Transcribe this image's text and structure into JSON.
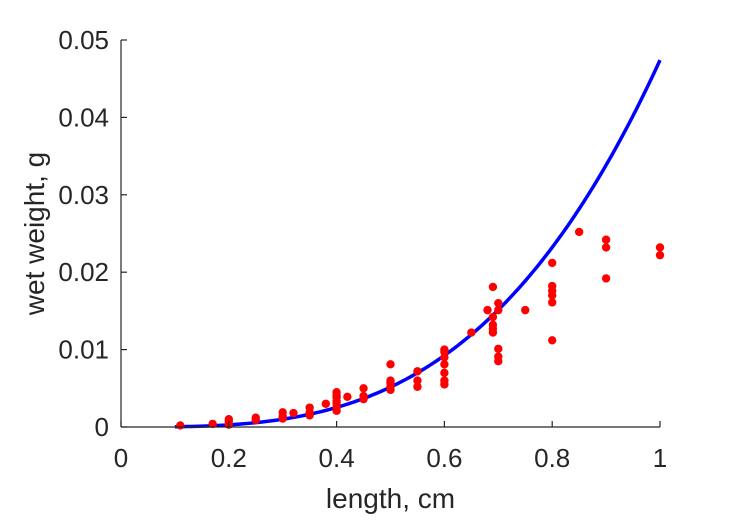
{
  "chart_data": {
    "type": "scatter",
    "title": "",
    "xlabel": "length, cm",
    "ylabel": "wet weight, g",
    "xlim": [
      0,
      1
    ],
    "ylim": [
      0,
      0.05
    ],
    "xticks": [
      0,
      0.2,
      0.4,
      0.6,
      0.8,
      1
    ],
    "xtick_labels": [
      "0",
      "0.2",
      "0.4",
      "0.6",
      "0.8",
      "1"
    ],
    "yticks": [
      0,
      0.01,
      0.02,
      0.03,
      0.04,
      0.05
    ],
    "ytick_labels": [
      "0",
      "0.01",
      "0.02",
      "0.03",
      "0.04",
      "0.05"
    ],
    "grid": false,
    "box": "left-bottom",
    "series": [
      {
        "kind": "scatter",
        "color": "#ff0000",
        "points": [
          [
            0.11,
            0.0002
          ],
          [
            0.17,
            0.0004
          ],
          [
            0.2,
            0.0003
          ],
          [
            0.2,
            0.0007
          ],
          [
            0.2,
            0.001
          ],
          [
            0.25,
            0.0009
          ],
          [
            0.25,
            0.0012
          ],
          [
            0.3,
            0.0011
          ],
          [
            0.3,
            0.0014
          ],
          [
            0.3,
            0.0019
          ],
          [
            0.32,
            0.0018
          ],
          [
            0.35,
            0.0015
          ],
          [
            0.35,
            0.0019
          ],
          [
            0.35,
            0.0025
          ],
          [
            0.38,
            0.003
          ],
          [
            0.4,
            0.0021
          ],
          [
            0.4,
            0.0025
          ],
          [
            0.4,
            0.003
          ],
          [
            0.4,
            0.0033
          ],
          [
            0.4,
            0.0038
          ],
          [
            0.4,
            0.0041
          ],
          [
            0.4,
            0.0045
          ],
          [
            0.42,
            0.0039
          ],
          [
            0.45,
            0.0036
          ],
          [
            0.45,
            0.004
          ],
          [
            0.45,
            0.005
          ],
          [
            0.5,
            0.0048
          ],
          [
            0.5,
            0.0052
          ],
          [
            0.5,
            0.0057
          ],
          [
            0.5,
            0.006
          ],
          [
            0.5,
            0.0081
          ],
          [
            0.55,
            0.0052
          ],
          [
            0.55,
            0.006
          ],
          [
            0.55,
            0.0072
          ],
          [
            0.6,
            0.0055
          ],
          [
            0.6,
            0.006
          ],
          [
            0.6,
            0.007
          ],
          [
            0.6,
            0.0081
          ],
          [
            0.6,
            0.009
          ],
          [
            0.6,
            0.0097
          ],
          [
            0.6,
            0.01
          ],
          [
            0.65,
            0.0122
          ],
          [
            0.68,
            0.0151
          ],
          [
            0.69,
            0.0122
          ],
          [
            0.69,
            0.0127
          ],
          [
            0.69,
            0.0132
          ],
          [
            0.69,
            0.0142
          ],
          [
            0.69,
            0.0181
          ],
          [
            0.7,
            0.0085
          ],
          [
            0.7,
            0.0091
          ],
          [
            0.7,
            0.0101
          ],
          [
            0.7,
            0.0151
          ],
          [
            0.7,
            0.016
          ],
          [
            0.75,
            0.0151
          ],
          [
            0.8,
            0.0112
          ],
          [
            0.8,
            0.0161
          ],
          [
            0.8,
            0.017
          ],
          [
            0.8,
            0.0176
          ],
          [
            0.8,
            0.0182
          ],
          [
            0.8,
            0.0212
          ],
          [
            0.85,
            0.0252
          ],
          [
            0.9,
            0.0192
          ],
          [
            0.9,
            0.0232
          ],
          [
            0.9,
            0.0242
          ],
          [
            1.0,
            0.0222
          ],
          [
            1.0,
            0.0232
          ]
        ]
      },
      {
        "kind": "line",
        "color": "#0000ff",
        "curve": "y = a * x^b",
        "a": 0.0474,
        "b": 3.2,
        "x_range": [
          0.1,
          1.0
        ]
      }
    ]
  }
}
